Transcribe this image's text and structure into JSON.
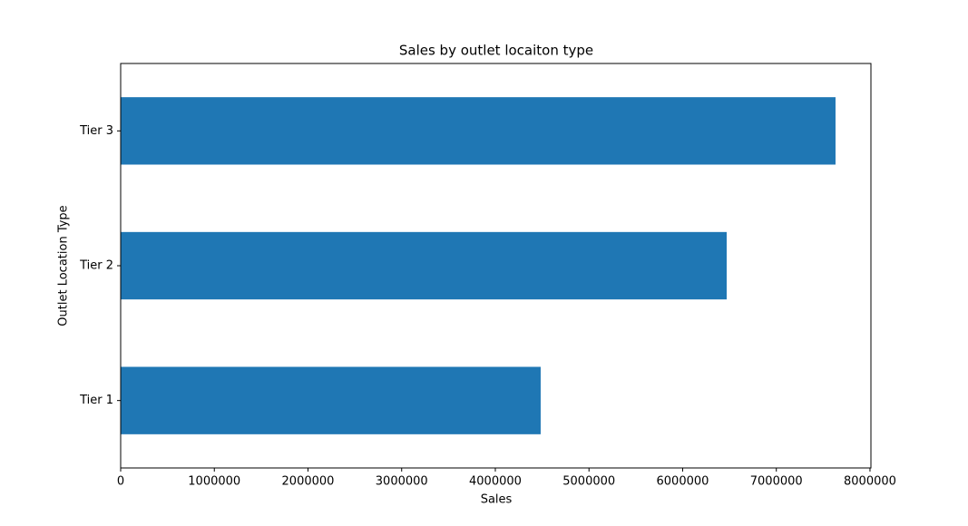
{
  "chart_data": {
    "type": "barh",
    "title": "Sales by outlet locaiton type",
    "xlabel": "Sales",
    "ylabel": "Outlet Location Type",
    "categories": [
      "Tier 1",
      "Tier 2",
      "Tier 3"
    ],
    "values": [
      4484000,
      6470000,
      7632000
    ],
    "color": "#1f77b4",
    "xlim": [
      0,
      8010000
    ],
    "xticks": [
      0,
      1000000,
      2000000,
      3000000,
      4000000,
      5000000,
      6000000,
      7000000,
      8000000
    ],
    "grid": false
  }
}
